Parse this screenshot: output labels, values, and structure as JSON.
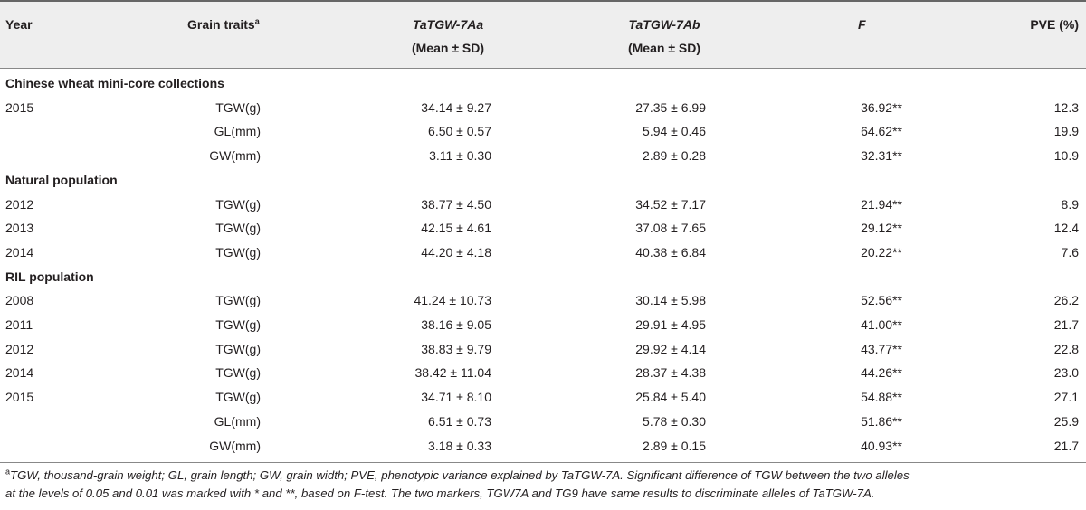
{
  "header": {
    "year": "Year",
    "grain_traits": "Grain traits",
    "grain_traits_sup": "a",
    "col_aa_line1": "TaTGW-7Aa",
    "col_aa_line2": "(Mean ± SD)",
    "col_ab_line1": "TaTGW-7Ab",
    "col_ab_line2": "(Mean ± SD)",
    "col_f": "F",
    "col_pve": "PVE (%)"
  },
  "sections": [
    {
      "title": "Chinese wheat mini-core collections",
      "rows": [
        {
          "year": "2015",
          "trait": "TGW(g)",
          "aa": "34.14 ± 9.27",
          "ab": "27.35 ± 6.99",
          "f": "36.92**",
          "pve": "12.3"
        },
        {
          "year": "",
          "trait": "GL(mm)",
          "aa": "6.50 ± 0.57",
          "ab": "5.94 ± 0.46",
          "f": "64.62**",
          "pve": "19.9"
        },
        {
          "year": "",
          "trait": "GW(mm)",
          "aa": "3.11 ± 0.30",
          "ab": "2.89 ± 0.28",
          "f": "32.31**",
          "pve": "10.9"
        }
      ]
    },
    {
      "title": "Natural population",
      "rows": [
        {
          "year": "2012",
          "trait": "TGW(g)",
          "aa": "38.77 ± 4.50",
          "ab": "34.52 ± 7.17",
          "f": "21.94**",
          "pve": "8.9"
        },
        {
          "year": "2013",
          "trait": "TGW(g)",
          "aa": "42.15 ± 4.61",
          "ab": "37.08 ± 7.65",
          "f": "29.12**",
          "pve": "12.4"
        },
        {
          "year": "2014",
          "trait": "TGW(g)",
          "aa": "44.20 ± 4.18",
          "ab": "40.38 ± 6.84",
          "f": "20.22**",
          "pve": "7.6"
        }
      ]
    },
    {
      "title": "RIL population",
      "rows": [
        {
          "year": "2008",
          "trait": "TGW(g)",
          "aa": "41.24 ± 10.73",
          "ab": "30.14 ± 5.98",
          "f": "52.56**",
          "pve": "26.2"
        },
        {
          "year": "2011",
          "trait": "TGW(g)",
          "aa": "38.16 ± 9.05",
          "ab": "29.91 ± 4.95",
          "f": "41.00**",
          "pve": "21.7"
        },
        {
          "year": "2012",
          "trait": "TGW(g)",
          "aa": "38.83 ± 9.79",
          "ab": "29.92 ± 4.14",
          "f": "43.77**",
          "pve": "22.8"
        },
        {
          "year": "2014",
          "trait": "TGW(g)",
          "aa": "38.42 ± 11.04",
          "ab": "28.37 ± 4.38",
          "f": "44.26**",
          "pve": "23.0"
        },
        {
          "year": "2015",
          "trait": "TGW(g)",
          "aa": "34.71 ± 8.10",
          "ab": "25.84 ± 5.40",
          "f": "54.88**",
          "pve": "27.1"
        },
        {
          "year": "",
          "trait": "GL(mm)",
          "aa": "6.51 ± 0.73",
          "ab": "5.78 ± 0.30",
          "f": "51.86**",
          "pve": "25.9"
        },
        {
          "year": "",
          "trait": "GW(mm)",
          "aa": "3.18 ± 0.33",
          "ab": "2.89 ± 0.15",
          "f": "40.93**",
          "pve": "21.7"
        }
      ]
    }
  ],
  "footnote": {
    "marker": "a",
    "line1": "TGW, thousand-grain weight; GL, grain length; GW, grain width; PVE, phenotypic variance explained by TaTGW-7A. Significant difference of TGW between the two alleles",
    "line2": "at the levels of 0.05 and 0.01 was marked with * and **, based on F-test. The two markers, TGW7A and TG9 have same results to discriminate alleles of TaTGW-7A."
  }
}
